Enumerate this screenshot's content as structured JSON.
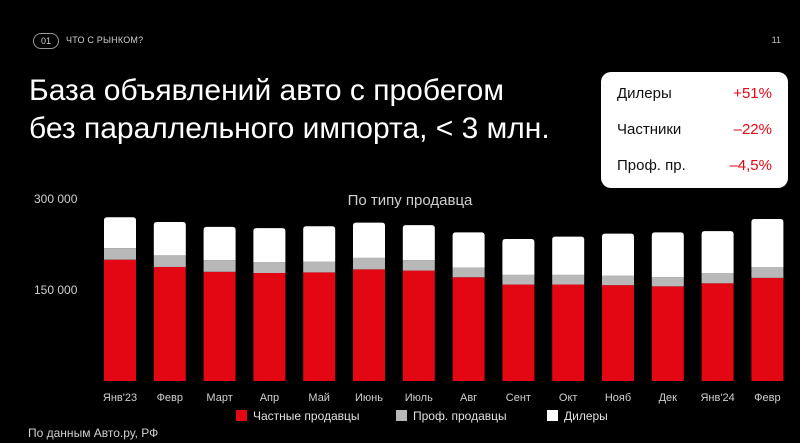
{
  "header": {
    "slide_badge": "01",
    "section": "ЧТО С РЫНКОМ?",
    "page_number": "11"
  },
  "title_lines": [
    "База объявлений авто с пробегом",
    "без параллельного импорта, < 3 млн."
  ],
  "stats": [
    {
      "label": "Дилеры",
      "value": "+51%"
    },
    {
      "label": "Частники",
      "value": "–22%"
    },
    {
      "label": "Проф. пр.",
      "value": "–4,5%"
    }
  ],
  "source": "По данным Авто.ру, РФ",
  "colors": {
    "private": "#e30613",
    "prof": "#b8b8b8",
    "dealers": "#ffffff",
    "accent": "#e30613"
  },
  "chart_data": {
    "type": "bar",
    "stacked": true,
    "title": "По типу продавца",
    "categories": [
      "Янв'23",
      "Февр",
      "Март",
      "Апр",
      "Май",
      "Июнь",
      "Июль",
      "Авг",
      "Сент",
      "Окт",
      "Нояб",
      "Дек",
      "Янв'24",
      "Февр"
    ],
    "series": [
      {
        "name": "Частные продавцы",
        "values": [
          200000,
          188000,
          180000,
          178000,
          179000,
          184000,
          182000,
          171000,
          159000,
          159000,
          158000,
          156000,
          161000,
          170000
        ]
      },
      {
        "name": "Проф. продавцы",
        "values": [
          19000,
          19000,
          19000,
          18000,
          18000,
          19000,
          17000,
          16000,
          16000,
          16000,
          16000,
          15000,
          17000,
          18000
        ]
      },
      {
        "name": "Дилеры",
        "values": [
          51000,
          55000,
          55000,
          56000,
          58000,
          58000,
          58000,
          58000,
          59000,
          63000,
          69000,
          74000,
          69000,
          79000
        ]
      }
    ],
    "y_ticks": [
      {
        "value": 300000,
        "label": "300 000"
      },
      {
        "value": 150000,
        "label": "150 000"
      }
    ],
    "ylim": [
      0,
      300000
    ],
    "grid": false,
    "legend_position": "bottom"
  }
}
